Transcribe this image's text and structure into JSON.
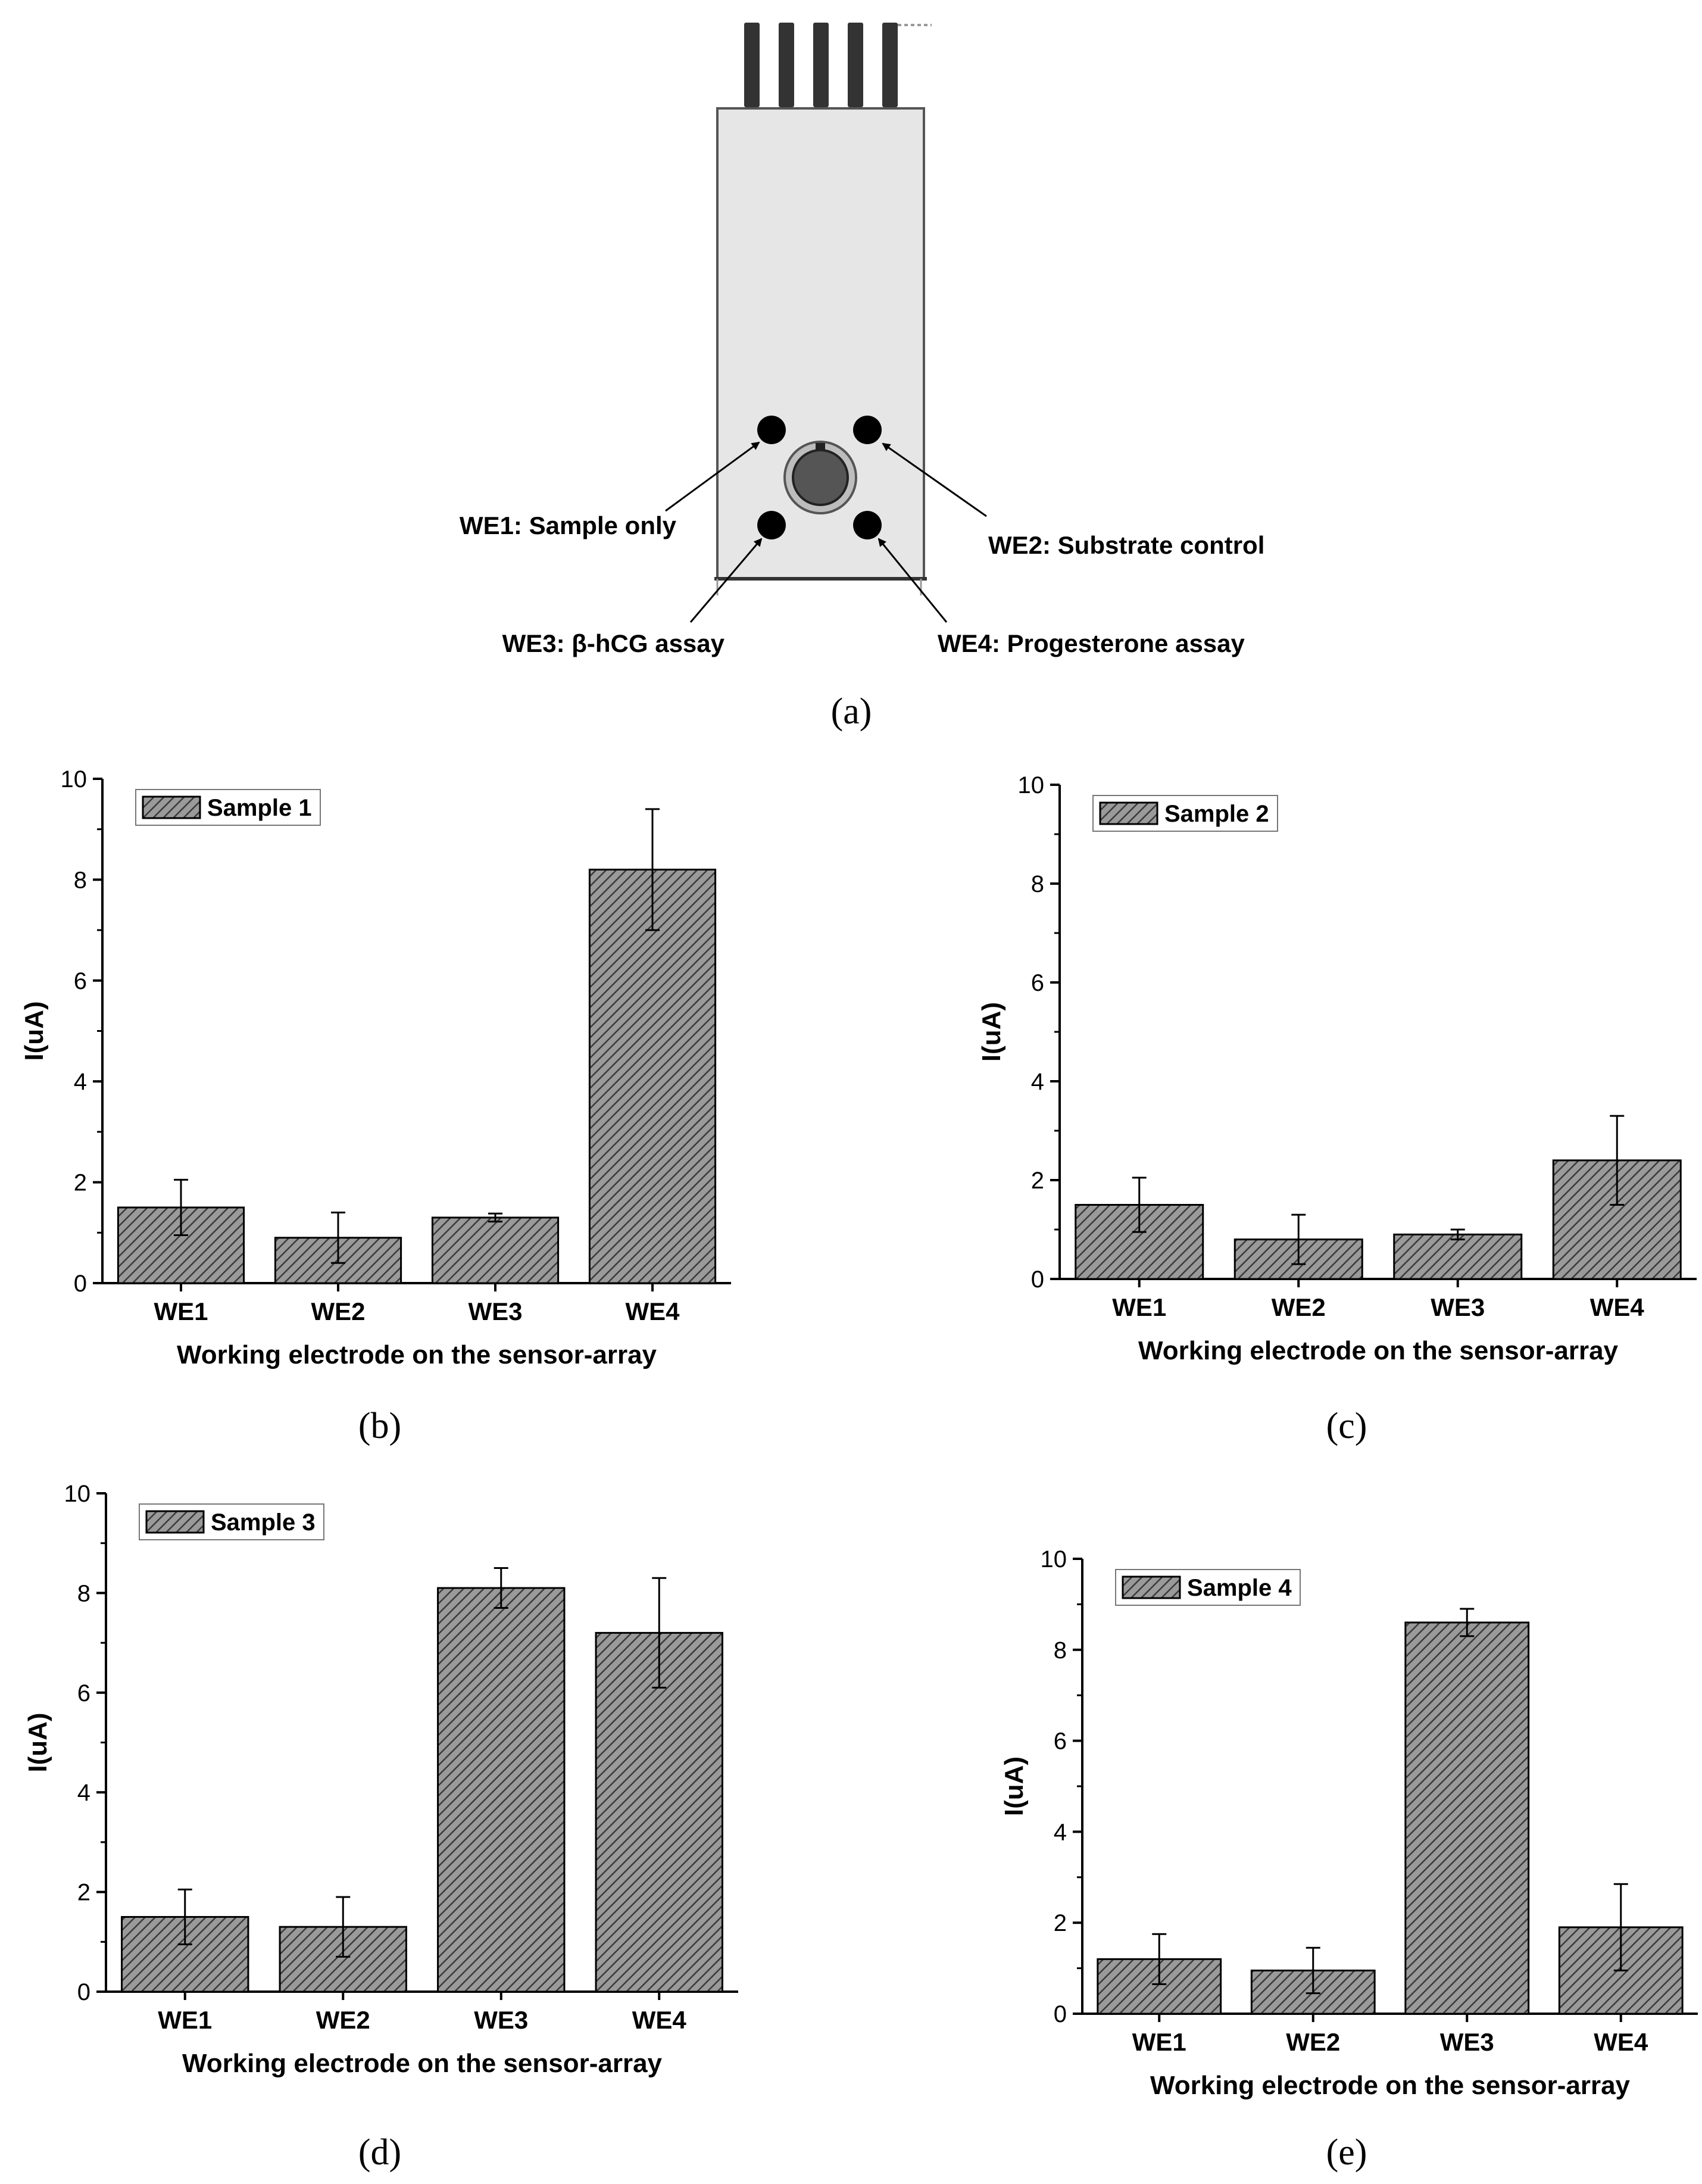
{
  "figure": {
    "labels": {
      "a": "(a)",
      "b": "(b)",
      "c": "(c)",
      "d": "(d)",
      "e": "(e)"
    },
    "sensor": {
      "we1": "WE1: Sample only",
      "we2": "WE2: Substrate control",
      "we3": "WE3: β-hCG assay",
      "we4": "WE4: Progesterone assay"
    },
    "colors": {
      "bar_fill": "#9a9a9a",
      "bar_hatch": "#3a3a3a",
      "axis": "#000000",
      "device_body": "#e6e6e6",
      "electrode": "#000000",
      "counter_electrode": "#555555"
    }
  },
  "chart_data": [
    {
      "type": "bar",
      "legend": "Sample 1",
      "categories": [
        "WE1",
        "WE2",
        "WE3",
        "WE4"
      ],
      "values": [
        1.5,
        0.9,
        1.3,
        8.2
      ],
      "errors": [
        0.55,
        0.5,
        0.08,
        1.2
      ],
      "xlabel": "Working electrode on the sensor-array",
      "ylabel": "I(uA)",
      "ylim": [
        0,
        10
      ],
      "yticks": [
        "0",
        "2",
        "4",
        "6",
        "8",
        "10"
      ],
      "legend_position": "top-left"
    },
    {
      "type": "bar",
      "legend": "Sample 2",
      "categories": [
        "WE1",
        "WE2",
        "WE3",
        "WE4"
      ],
      "values": [
        1.5,
        0.8,
        0.9,
        2.4
      ],
      "errors": [
        0.55,
        0.5,
        0.1,
        0.9
      ],
      "xlabel": "Working electrode on the sensor-array",
      "ylabel": "I(uA)",
      "ylim": [
        0,
        10
      ],
      "yticks": [
        "0",
        "2",
        "4",
        "6",
        "8",
        "10"
      ],
      "legend_position": "top-left"
    },
    {
      "type": "bar",
      "legend": "Sample 3",
      "categories": [
        "WE1",
        "WE2",
        "WE3",
        "WE4"
      ],
      "values": [
        1.5,
        1.3,
        8.1,
        7.2
      ],
      "errors": [
        0.55,
        0.6,
        0.4,
        1.1
      ],
      "xlabel": "Working electrode on the sensor-array",
      "ylabel": "I(uA)",
      "ylim": [
        0,
        10
      ],
      "yticks": [
        "0",
        "2",
        "4",
        "6",
        "8",
        "10"
      ],
      "legend_position": "top-left"
    },
    {
      "type": "bar",
      "legend": "Sample 4",
      "categories": [
        "WE1",
        "WE2",
        "WE3",
        "WE4"
      ],
      "values": [
        1.2,
        0.95,
        8.6,
        1.9
      ],
      "errors": [
        0.55,
        0.5,
        0.3,
        0.95
      ],
      "xlabel": "Working electrode on the sensor-array",
      "ylabel": "I(uA)",
      "ylim": [
        0,
        10
      ],
      "yticks": [
        "0",
        "2",
        "4",
        "6",
        "8",
        "10"
      ],
      "legend_position": "top-left"
    }
  ]
}
